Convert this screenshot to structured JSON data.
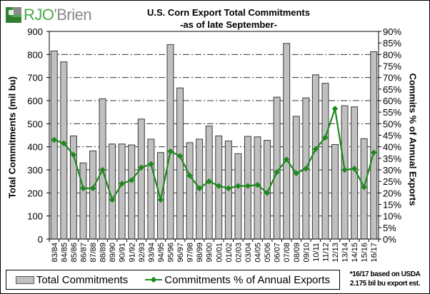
{
  "brand": {
    "name": "RJO'Brien",
    "prefix": "RJO",
    "suffix": "'Brien",
    "color_green": "#4aa84a",
    "color_gray": "#8a8a8a"
  },
  "chart_data": {
    "type": "bar+line",
    "title": "U.S. Corn Export Total Commitments",
    "subtitle": "-as of late September-",
    "ylabel": "Total Commitments  (mil bu)",
    "y2label": "Commits % of Annual Exports",
    "ylim": [
      0,
      900
    ],
    "y2lim": [
      0,
      90
    ],
    "yticks": [
      "0",
      "100",
      "200",
      "300",
      "400",
      "500",
      "600",
      "700",
      "800",
      "900"
    ],
    "y2ticks": [
      "0%",
      "5%",
      "10%",
      "15%",
      "20%",
      "25%",
      "30%",
      "35%",
      "40%",
      "45%",
      "50%",
      "55%",
      "60%",
      "65%",
      "70%",
      "75%",
      "80%",
      "85%",
      "90%"
    ],
    "grid": "horizontal dash-dot",
    "categories": [
      "83/84",
      "84/85",
      "85/86",
      "86/87",
      "87/88",
      "88/89",
      "89/90",
      "90/91",
      "91/92",
      "92/93",
      "93/94",
      "94/95",
      "95/96",
      "96/97",
      "97/98",
      "98/99",
      "99/00",
      "00/01",
      "01/02",
      "02/03",
      "03/04",
      "04/05",
      "05/06",
      "06/07",
      "07/08",
      "08/09",
      "09/10",
      "10/11",
      "11/12",
      "12/13",
      "13/14",
      "14/15",
      "15/16",
      "16/17"
    ],
    "series": [
      {
        "name": "Total Commitments",
        "type": "bar",
        "axis": "left",
        "color": "#c0c0c0",
        "values": [
          815,
          768,
          447,
          330,
          382,
          608,
          412,
          412,
          408,
          520,
          433,
          375,
          843,
          655,
          418,
          433,
          490,
          447,
          425,
          370,
          445,
          443,
          428,
          615,
          848,
          532,
          612,
          712,
          675,
          410,
          578,
          573,
          435,
          812
        ]
      },
      {
        "name": "Commitments % of Annual Exports",
        "type": "line",
        "axis": "right",
        "unit": "%",
        "color": "#1e8a1e",
        "values": [
          43,
          41.5,
          36.5,
          22,
          22,
          30,
          17,
          24,
          25.5,
          31,
          32.5,
          17,
          38,
          36,
          27.5,
          22,
          25,
          23,
          22,
          23,
          23,
          23.5,
          20,
          29,
          34.5,
          28.5,
          30.5,
          39,
          44,
          56.5,
          30,
          30.5,
          22.5,
          37.5
        ]
      }
    ],
    "legend": "bottom"
  },
  "legend": {
    "bar_label": "Total Commitments",
    "line_label": "Commitments % of Annual Exports"
  },
  "note": {
    "line1": "*16/17 based on USDA",
    "line2": "2.175 bil bu export est."
  }
}
